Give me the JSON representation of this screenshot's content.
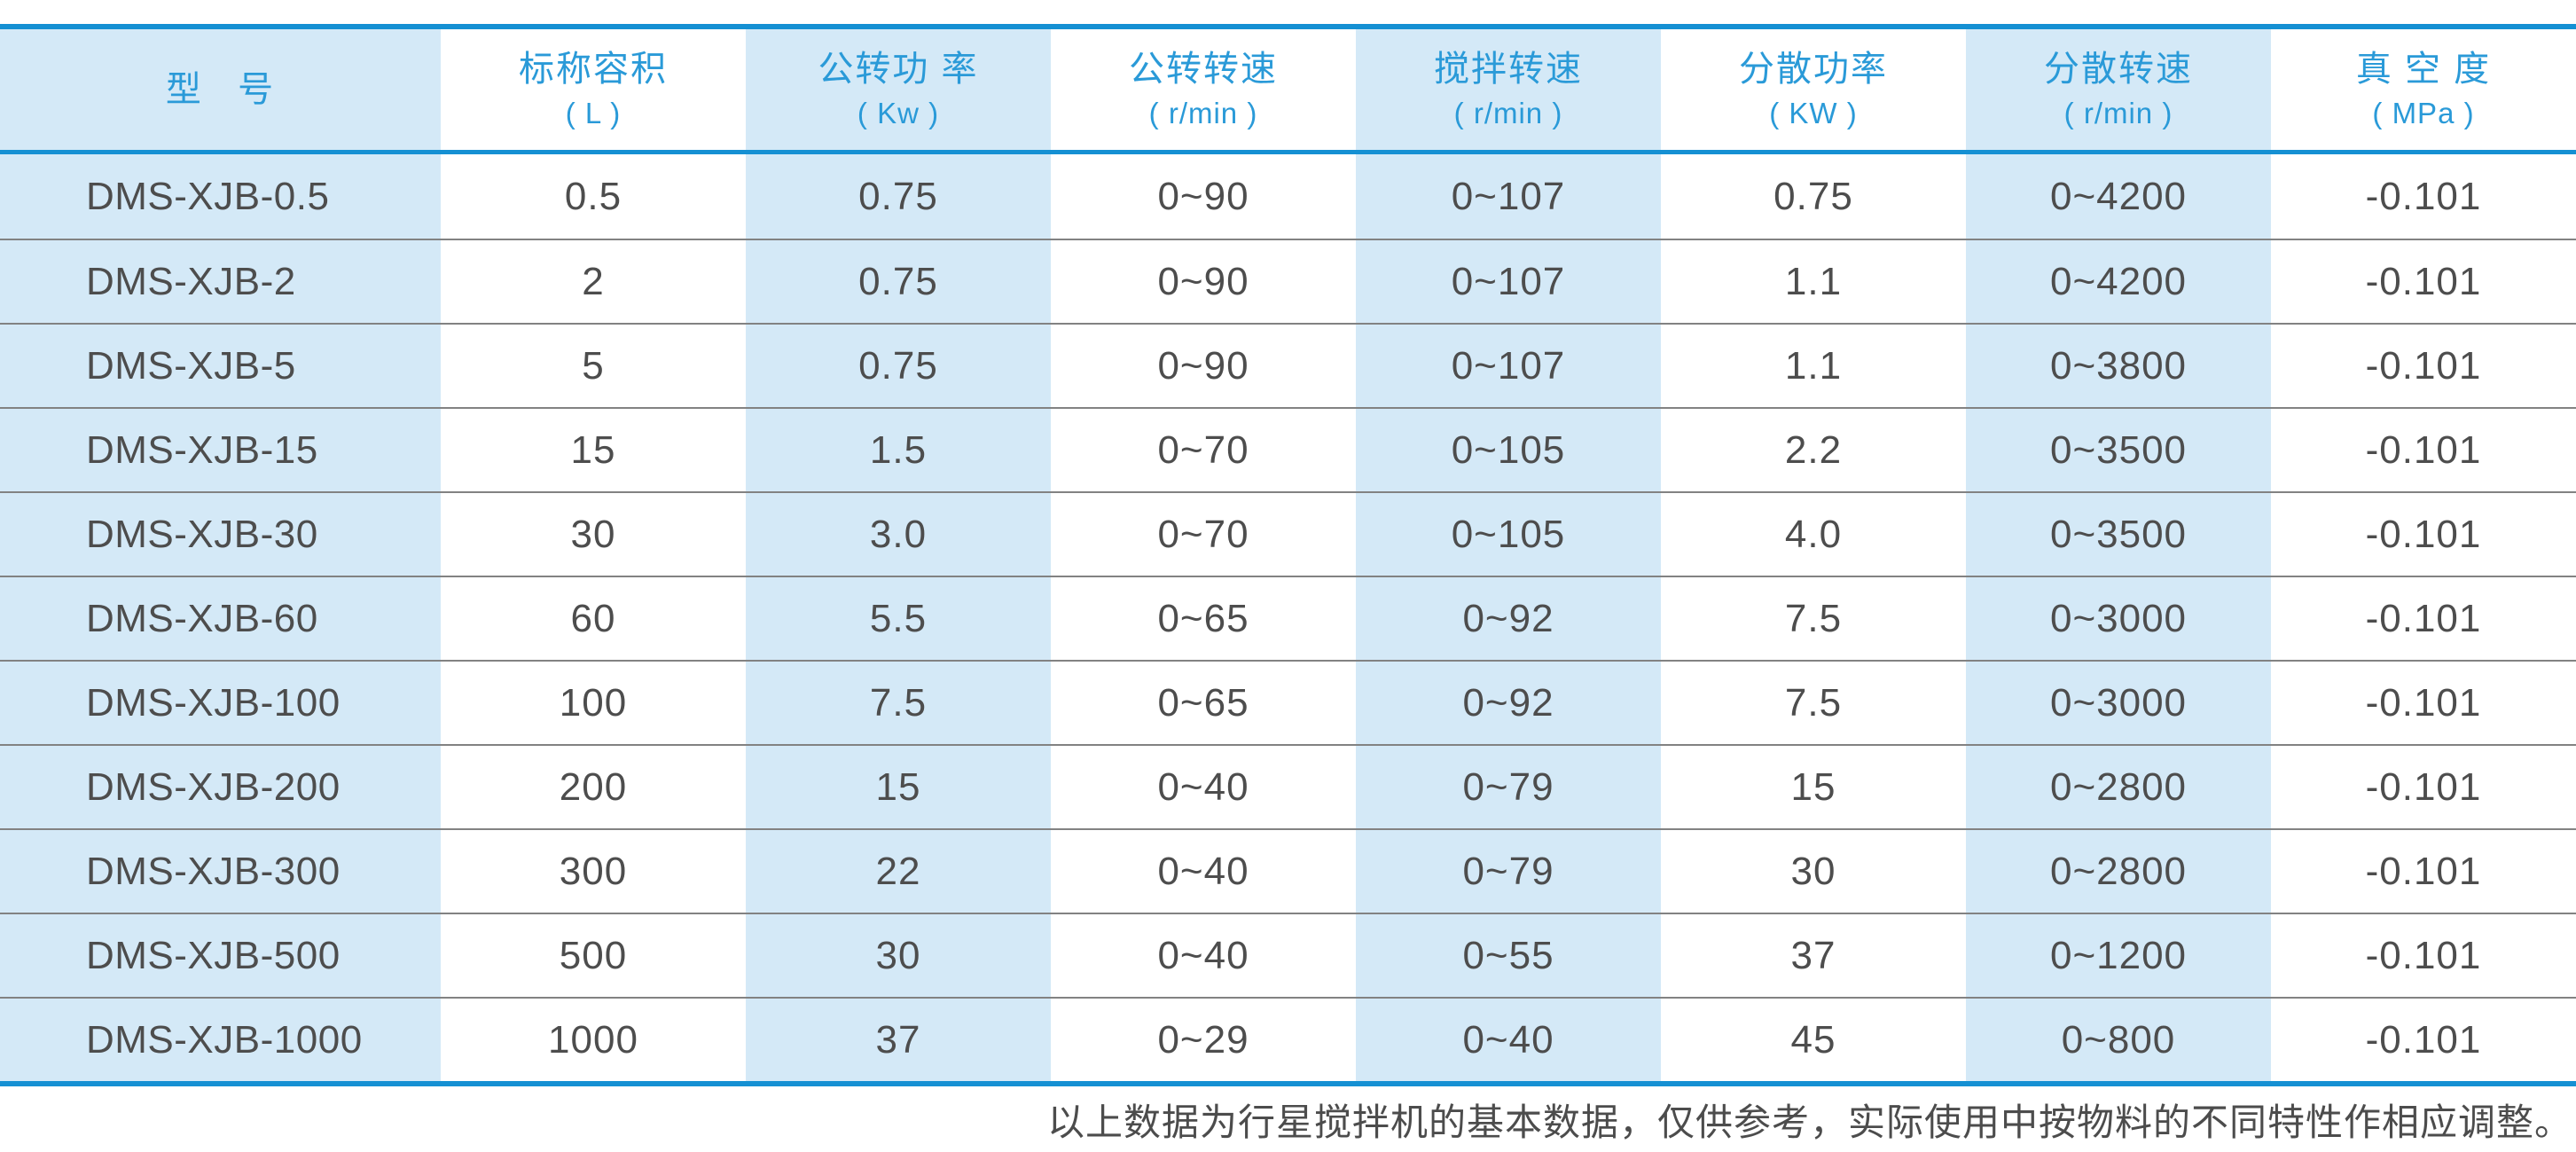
{
  "colors": {
    "accent_blue": "#1590d3",
    "header_text_blue": "#2a9ad8",
    "column_stripe_blue": "#d4e9f7",
    "body_text": "#4d4d4d",
    "row_separator": "#828282"
  },
  "table": {
    "columns": [
      {
        "label": "型   号",
        "unit": ""
      },
      {
        "label": "标称容积",
        "unit": "( L )"
      },
      {
        "label": "公转功 率",
        "unit": "( Kw )"
      },
      {
        "label": "公转转速",
        "unit": "( r/min )"
      },
      {
        "label": "搅拌转速",
        "unit": "( r/min )"
      },
      {
        "label": "分散功率",
        "unit": "( KW )"
      },
      {
        "label": "分散转速",
        "unit": "( r/min )"
      },
      {
        "label": "真 空 度",
        "unit": "( MPa )"
      }
    ],
    "rows": [
      {
        "cells": [
          "DMS-XJB-0.5",
          "0.5",
          "0.75",
          "0~90",
          "0~107",
          "0.75",
          "0~4200",
          "-0.101"
        ]
      },
      {
        "cells": [
          "DMS-XJB-2",
          "2",
          "0.75",
          "0~90",
          "0~107",
          "1.1",
          "0~4200",
          "-0.101"
        ]
      },
      {
        "cells": [
          "DMS-XJB-5",
          "5",
          "0.75",
          "0~90",
          "0~107",
          "1.1",
          "0~3800",
          "-0.101"
        ]
      },
      {
        "cells": [
          "DMS-XJB-15",
          "15",
          "1.5",
          "0~70",
          "0~105",
          "2.2",
          "0~3500",
          "-0.101"
        ]
      },
      {
        "cells": [
          "DMS-XJB-30",
          "30",
          "3.0",
          "0~70",
          "0~105",
          "4.0",
          "0~3500",
          "-0.101"
        ]
      },
      {
        "cells": [
          "DMS-XJB-60",
          "60",
          "5.5",
          "0~65",
          "0~92",
          "7.5",
          "0~3000",
          "-0.101"
        ]
      },
      {
        "cells": [
          "DMS-XJB-100",
          "100",
          "7.5",
          "0~65",
          "0~92",
          "7.5",
          "0~3000",
          "-0.101"
        ]
      },
      {
        "cells": [
          "DMS-XJB-200",
          "200",
          "15",
          "0~40",
          "0~79",
          "15",
          "0~2800",
          "-0.101"
        ]
      },
      {
        "cells": [
          "DMS-XJB-300",
          "300",
          "22",
          "0~40",
          "0~79",
          "30",
          "0~2800",
          "-0.101"
        ]
      },
      {
        "cells": [
          "DMS-XJB-500",
          "500",
          "30",
          "0~40",
          "0~55",
          "37",
          "0~1200",
          "-0.101"
        ]
      },
      {
        "cells": [
          "DMS-XJB-1000",
          "1000",
          "37",
          "0~29",
          "0~40",
          "45",
          "0~800",
          "-0.101"
        ]
      }
    ]
  },
  "footer": {
    "note": "以上数据为行星搅拌机的基本数据，仅供参考，实际使用中按物料的不同特性作相应调整。"
  }
}
